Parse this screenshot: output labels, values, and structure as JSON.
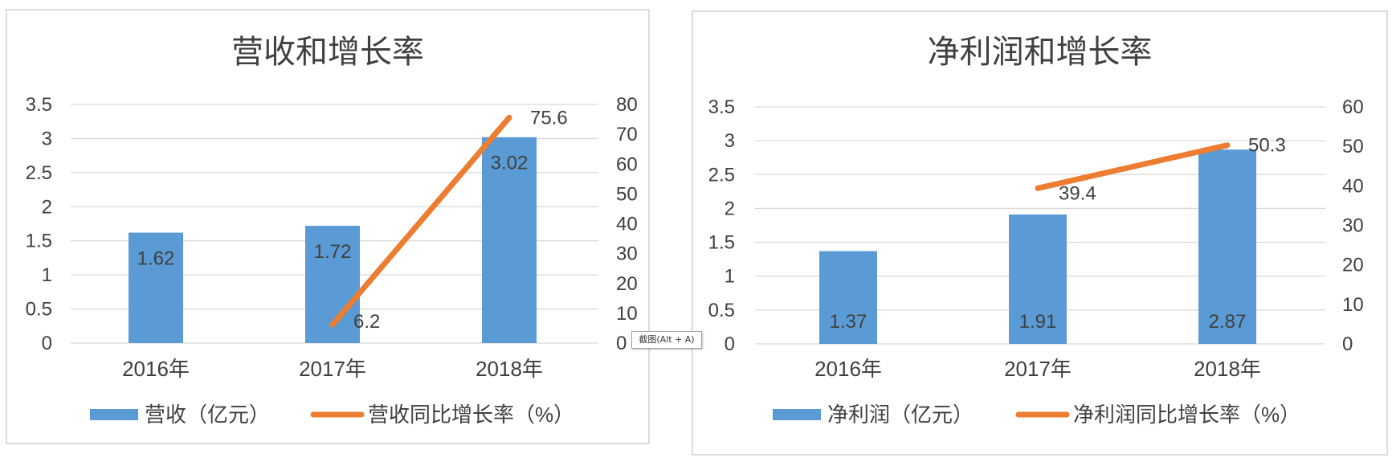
{
  "colors": {
    "bar": "#5b9bd5",
    "line": "#ed7d31",
    "text": "#404040",
    "grid": "#d9d9d9"
  },
  "tooltip": {
    "text": "截图(Alt + A)"
  },
  "chart_data": [
    {
      "type": "bar",
      "title": "营收和增长率",
      "categories": [
        "2016年",
        "2017年",
        "2018年"
      ],
      "series": [
        {
          "name": "营收（亿元）",
          "type": "bar",
          "axis": "left",
          "values": [
            1.62,
            1.72,
            3.02
          ],
          "labels": [
            "1.62",
            "1.72",
            "3.02"
          ]
        },
        {
          "name": "营收同比增长率（%）",
          "type": "line",
          "axis": "right",
          "values": [
            null,
            6.2,
            75.6
          ],
          "labels": [
            "",
            "6.2",
            "75.6"
          ]
        }
      ],
      "ylim": [
        0,
        3.5
      ],
      "yticks": [
        "0",
        "0.5",
        "1",
        "1.5",
        "2",
        "2.5",
        "3",
        "3.5"
      ],
      "y2lim": [
        0,
        80
      ],
      "y2ticks": [
        "0",
        "10",
        "20",
        "30",
        "40",
        "50",
        "60",
        "70",
        "80"
      ],
      "grid": true,
      "legend": "bottom"
    },
    {
      "type": "bar",
      "title": "净利润和增长率",
      "categories": [
        "2016年",
        "2017年",
        "2018年"
      ],
      "series": [
        {
          "name": "净利润（亿元）",
          "type": "bar",
          "axis": "left",
          "values": [
            1.37,
            1.91,
            2.87
          ],
          "labels": [
            "1.37",
            "1.91",
            "2.87"
          ]
        },
        {
          "name": "净利润同比增长率（%）",
          "type": "line",
          "axis": "right",
          "values": [
            null,
            39.4,
            50.3
          ],
          "labels": [
            "",
            "39.4",
            "50.3"
          ]
        }
      ],
      "ylim": [
        0,
        3.5
      ],
      "yticks": [
        "0",
        "0.5",
        "1",
        "1.5",
        "2",
        "2.5",
        "3",
        "3.5"
      ],
      "y2lim": [
        0,
        60
      ],
      "y2ticks": [
        "0",
        "10",
        "20",
        "30",
        "40",
        "50",
        "60"
      ],
      "grid": true,
      "legend": "bottom"
    }
  ]
}
